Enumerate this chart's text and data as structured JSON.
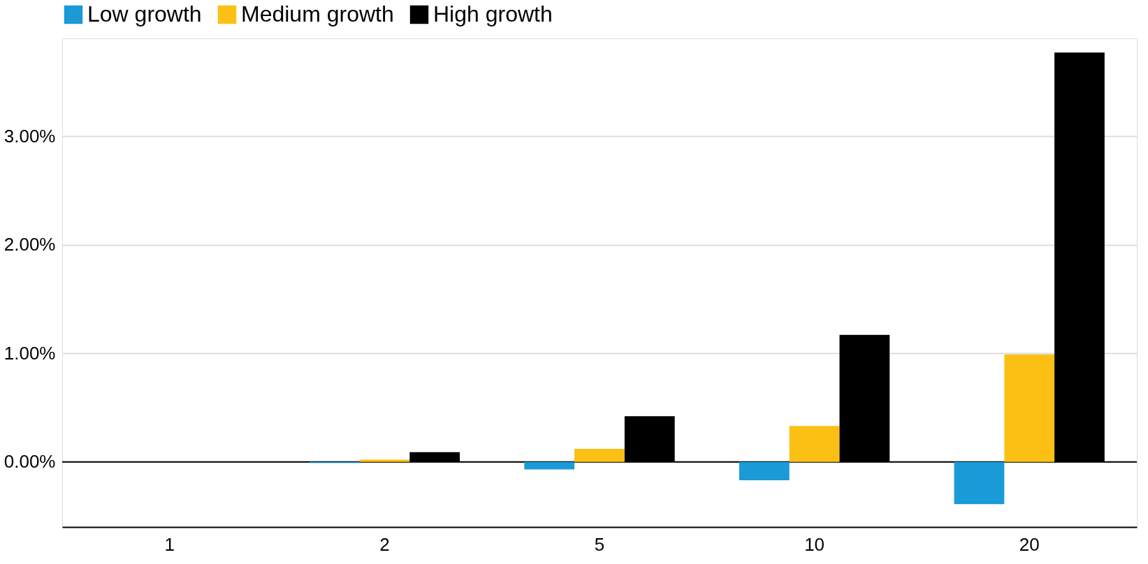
{
  "chart_data": {
    "type": "bar",
    "categories": [
      "1",
      "2",
      "5",
      "10",
      "20"
    ],
    "series": [
      {
        "name": "Low growth",
        "color": "#1a9ad6",
        "values": [
          0,
          -0.01,
          -0.07,
          -0.17,
          -0.39
        ]
      },
      {
        "name": "Medium growth",
        "color": "#fcc015",
        "values": [
          0,
          0.02,
          0.12,
          0.33,
          0.99
        ]
      },
      {
        "name": "High growth",
        "color": "#000000",
        "values": [
          0,
          0.09,
          0.42,
          1.17,
          3.77
        ]
      }
    ],
    "ylim": [
      -0.6,
      3.9
    ],
    "yticks": [
      {
        "value": 0,
        "label": "0.00%"
      },
      {
        "value": 1,
        "label": "1.00%"
      },
      {
        "value": 2,
        "label": "2.00%"
      },
      {
        "value": 3,
        "label": "3.00%"
      }
    ],
    "grid": "y",
    "legend": "top",
    "ref_lines": [
      {
        "axis": "y",
        "value": 0,
        "color": "#000000"
      }
    ]
  }
}
